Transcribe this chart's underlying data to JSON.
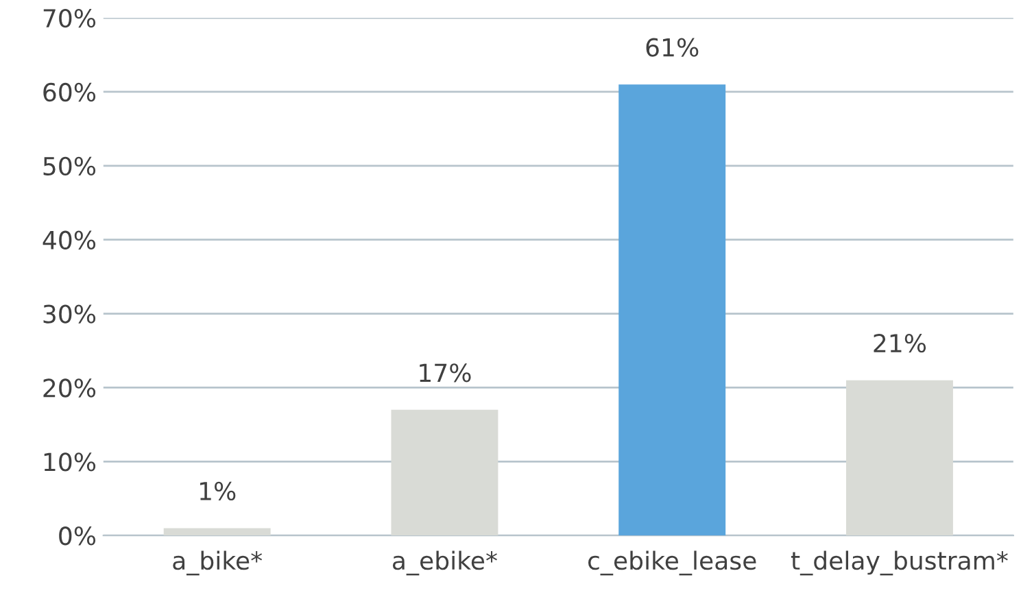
{
  "chart_data": {
    "type": "bar",
    "categories": [
      "a_bike*",
      "a_ebike*",
      "c_ebike_lease",
      "t_delay_bustram*"
    ],
    "values": [
      1,
      17,
      61,
      21
    ],
    "colors": [
      "#d9dbd6",
      "#d9dbd6",
      "#5aa5dc",
      "#d9dbd6"
    ],
    "value_labels": [
      "1%",
      "17%",
      "61%",
      "21%"
    ],
    "ylim": [
      0,
      70
    ],
    "yticks": [
      {
        "value": 0,
        "label": "0%"
      },
      {
        "value": 10,
        "label": "10%"
      },
      {
        "value": 20,
        "label": "20%"
      },
      {
        "value": 30,
        "label": "30%"
      },
      {
        "value": 40,
        "label": "40%"
      },
      {
        "value": 50,
        "label": "50%"
      },
      {
        "value": 60,
        "label": "60%"
      },
      {
        "value": 70,
        "label": "70%"
      }
    ],
    "grid": "y",
    "legend": false
  }
}
